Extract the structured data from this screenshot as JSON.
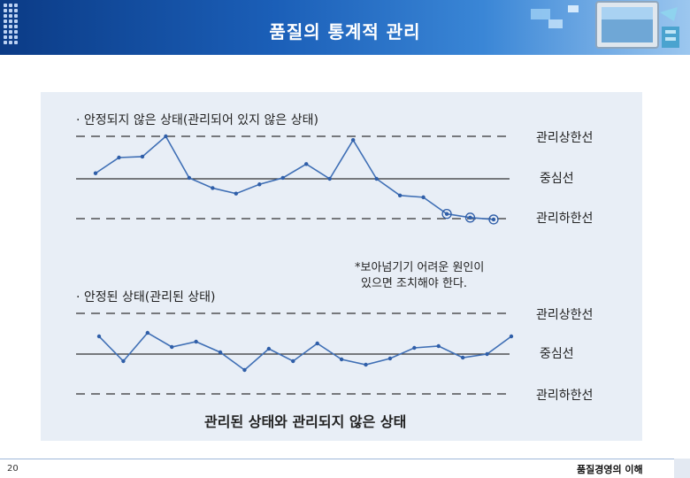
{
  "header": {
    "title": "품질의 통계적 관리"
  },
  "chart_data": {
    "type": "line",
    "title": "관리된 상태와 관리되지 않은 상태",
    "panels": [
      {
        "heading": "· 안정되지 않은 상태(관리되어 있지 않은 상태)",
        "limit_labels": {
          "ucl": "관리상한선",
          "cl": "중심선",
          "lcl": "관리하한선"
        },
        "values": [
          0.3,
          1.15,
          1.2,
          2.3,
          0.05,
          -0.5,
          -0.8,
          -0.3,
          0.05,
          0.8,
          0.0,
          2.1,
          0.0,
          -0.9,
          -1.0,
          -1.9,
          -2.1,
          -2.2
        ],
        "flagged_points": [
          15,
          16,
          17
        ],
        "annotation": [
          "*보아넘기기 어려운 원인이",
          "있으면 조치해야 한다."
        ]
      },
      {
        "heading": "· 안정된 상태(관리된 상태)",
        "limit_labels": {
          "ucl": "관리상한선",
          "cl": "중심선",
          "lcl": "관리하한선"
        },
        "values": [
          1.0,
          -0.4,
          1.2,
          0.4,
          0.7,
          0.1,
          -0.9,
          0.3,
          -0.4,
          0.6,
          -0.3,
          -0.6,
          -0.25,
          0.35,
          0.45,
          -0.2,
          0.0,
          1.0
        ]
      }
    ]
  },
  "footer": {
    "page_number": "20",
    "text": "품질경영의 이해"
  }
}
